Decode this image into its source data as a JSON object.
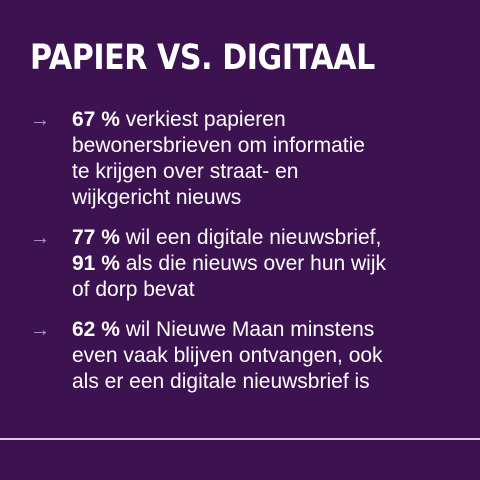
{
  "title": "PAPIER VS. DIGITAAL",
  "items": [
    {
      "arrow": "→",
      "segments": [
        {
          "text": "67 %",
          "bold": true
        },
        {
          "text": " verkiest papieren\nbewonersbrieven om informatie\nte krijgen over straat- en\nwijkgericht nieuws",
          "bold": false
        }
      ]
    },
    {
      "arrow": "→",
      "segments": [
        {
          "text": "77 %",
          "bold": true
        },
        {
          "text": " wil een digitale nieuwsbrief,\n",
          "bold": false
        },
        {
          "text": "91 %",
          "bold": true
        },
        {
          "text": " als die nieuws over hun wijk\nof dorp bevat",
          "bold": false
        }
      ]
    },
    {
      "arrow": "→",
      "segments": [
        {
          "text": "62 %",
          "bold": true
        },
        {
          "text": " wil Nieuwe Maan minstens\neven vaak blijven ontvangen, ook\nals er een digitale nieuwsbrief is",
          "bold": false
        }
      ]
    }
  ],
  "colors": {
    "background": "#3d1250",
    "text": "#ffffff",
    "arrow": "#b79ac9",
    "rule": "#d9cfe0"
  }
}
